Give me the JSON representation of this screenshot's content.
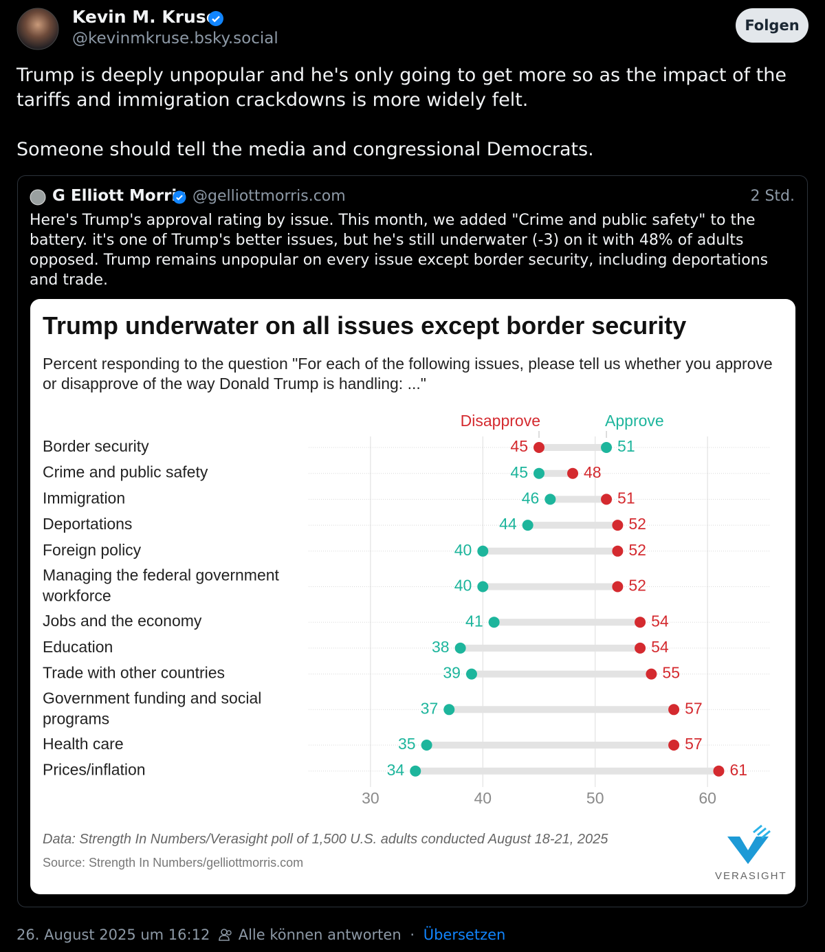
{
  "post": {
    "author": "Kevin M. Kruse",
    "handle": "@kevinmkruse.bsky.social",
    "follow": "Folgen",
    "paragraphs": [
      "Trump is deeply unpopular and he's only going to get more so as the impact of the tariffs and immigration crackdowns is more widely felt.",
      "Someone should tell the media and congressional Democrats."
    ]
  },
  "quote": {
    "author": "G Elliott Morris",
    "handle": "@gelliottmorris.com",
    "time": "2 Std.",
    "text": "Here's Trump's approval rating by issue. This month, we added \"Crime and public safety\" to the battery. it's one of Trump's better issues, but he's still underwater (-3) on it with 48% of adults opposed. Trump remains unpopular on every issue except border security, including deportations and trade."
  },
  "chart_data": {
    "type": "dumbbell",
    "title": "Trump underwater on all issues except border security",
    "subtitle": "Percent responding to the question \"For each of the following issues, please tell us whether you approve or disapprove of the way Donald Trump is handling: ...\"",
    "categories": [
      "Border security",
      "Crime and public safety",
      "Immigration",
      "Deportations",
      "Foreign policy",
      "Managing the federal government workforce",
      "Jobs and the economy",
      "Education",
      "Trade with other countries",
      "Government funding and social programs",
      "Health care",
      "Prices/inflation"
    ],
    "series": [
      {
        "name": "Disapprove",
        "color": "#d42a2f",
        "values": [
          45,
          48,
          51,
          52,
          52,
          52,
          54,
          54,
          55,
          57,
          57,
          61
        ]
      },
      {
        "name": "Approve",
        "color": "#1db59c",
        "values": [
          51,
          45,
          46,
          44,
          40,
          40,
          41,
          38,
          39,
          37,
          35,
          34
        ]
      }
    ],
    "xlim": [
      24.5,
      65.5
    ],
    "xticks": [
      30,
      40,
      50,
      60
    ],
    "grid": true,
    "caption": "Data: Strength In Numbers/Verasight poll of 1,500 U.S. adults conducted August 18-21, 2025",
    "source": "Source: Strength In Numbers/gelliottmorris.com",
    "logo": "VERASIGHT"
  },
  "footer": {
    "date": "26. August 2025 um 16:12",
    "replies": "Alle können antworten",
    "separator": "·",
    "translate": "Übersetzen"
  }
}
